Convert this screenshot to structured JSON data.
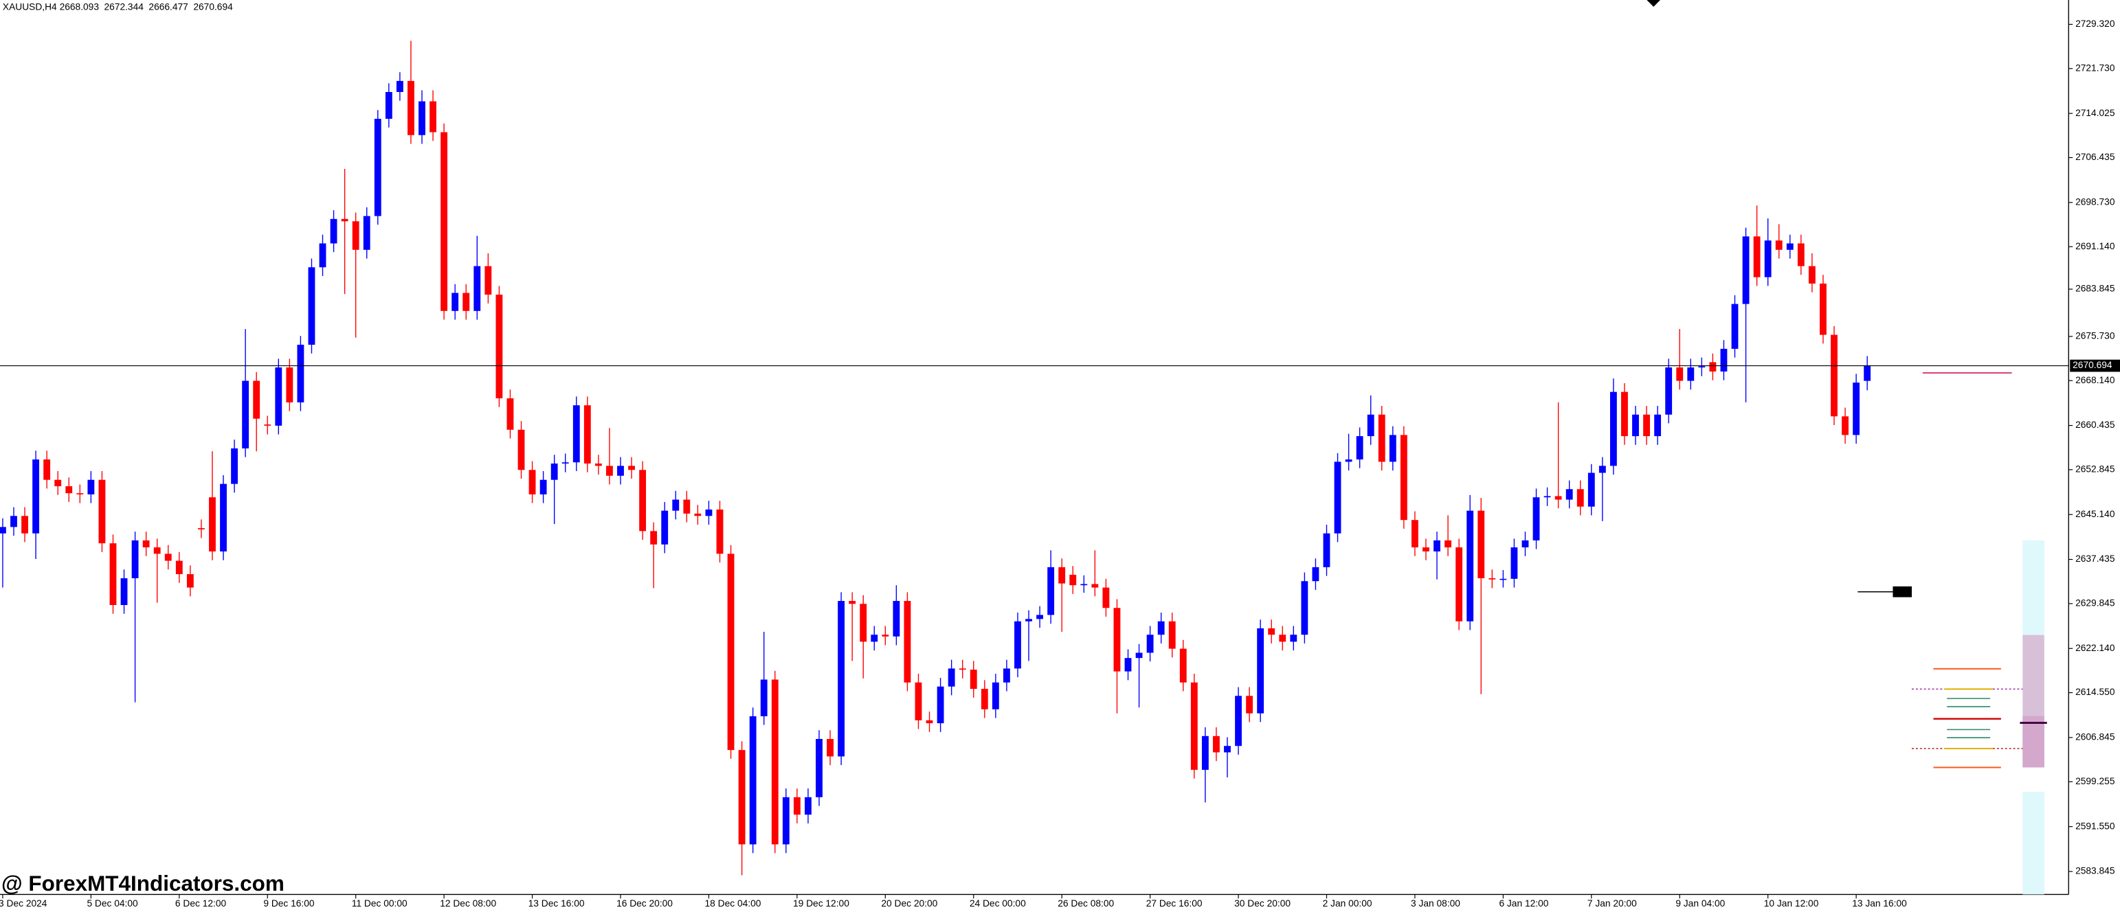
{
  "chart_data": {
    "type": "candlestick",
    "symbol": "XAUUSD,H4",
    "watermark": "@ ForexMT4Indicators.com",
    "up_color": "#0000ff",
    "down_color": "#ff0000",
    "ylim": [
      2579.9,
      2733.5
    ],
    "yticks": [
      {
        "value": 2729.32,
        "label": "2729.320"
      },
      {
        "value": 2721.73,
        "label": "2721.730"
      },
      2714.025,
      2706.435,
      {
        "value": 2698.73,
        "label": "2698.730"
      },
      {
        "value": 2691.14,
        "label": "2691.140"
      },
      2683.845,
      {
        "value": 2675.73,
        "label": "2675.730"
      },
      {
        "value": 2668.14,
        "label": "2668.140"
      },
      2660.435,
      2652.845,
      {
        "value": 2645.14,
        "label": "2645.140"
      },
      2637.435,
      2629.845,
      {
        "value": 2622.14,
        "label": "2622.140"
      },
      {
        "value": 2614.55,
        "label": "2614.550"
      },
      2606.845,
      2599.255,
      {
        "value": 2591.55,
        "label": "2591.550"
      },
      2583.845
    ],
    "categories": [
      "3 Dec 2024",
      null,
      null,
      null,
      null,
      null,
      null,
      null,
      "5 Dec 04:00",
      null,
      null,
      null,
      null,
      null,
      null,
      null,
      "6 Dec 12:00",
      null,
      null,
      null,
      null,
      null,
      null,
      null,
      "9 Dec 16:00",
      null,
      null,
      null,
      null,
      null,
      null,
      null,
      "11 Dec 00:00",
      null,
      null,
      null,
      null,
      null,
      null,
      null,
      "12 Dec 08:00",
      null,
      null,
      null,
      null,
      null,
      null,
      null,
      "13 Dec 16:00",
      null,
      null,
      null,
      null,
      null,
      null,
      null,
      "16 Dec 20:00",
      null,
      null,
      null,
      null,
      null,
      null,
      null,
      "18 Dec 04:00",
      null,
      null,
      null,
      null,
      null,
      null,
      null,
      "19 Dec 12:00",
      null,
      null,
      null,
      null,
      null,
      null,
      null,
      "20 Dec 20:00",
      null,
      null,
      null,
      null,
      null,
      null,
      null,
      "24 Dec 00:00",
      null,
      null,
      null,
      null,
      null,
      null,
      null,
      "26 Dec 08:00",
      null,
      null,
      null,
      null,
      null,
      null,
      null,
      "27 Dec 16:00",
      null,
      null,
      null,
      null,
      null,
      null,
      null,
      "30 Dec 20:00",
      null,
      null,
      null,
      null,
      null,
      null,
      null,
      "2 Jan 00:00",
      null,
      null,
      null,
      null,
      null,
      null,
      null,
      "3 Jan 08:00",
      null,
      null,
      null,
      null,
      null,
      null,
      null,
      "6 Jan 12:00",
      null,
      null,
      null,
      null,
      null,
      null,
      null,
      "7 Jan 20:00",
      null,
      null,
      null,
      null,
      null,
      null,
      null,
      "9 Jan 04:00",
      null,
      null,
      null,
      null,
      null,
      null,
      null,
      "10 Jan 12:00",
      null,
      null,
      null,
      null,
      null,
      null,
      null,
      "13 Jan 16:00",
      null
    ],
    "ohlc": [
      [
        2641.9,
        2644.5,
        2632.6,
        2643.0
      ],
      [
        2643.0,
        2646.4,
        2641.5,
        2644.9
      ],
      [
        2644.9,
        2646.4,
        2640.4,
        2641.9
      ],
      [
        2641.9,
        2656.1,
        2637.5,
        2654.6
      ],
      [
        2654.6,
        2656.1,
        2649.6,
        2651.1
      ],
      [
        2651.1,
        2652.6,
        2648.5,
        2650.0
      ],
      [
        2650.0,
        2651.5,
        2647.3,
        2648.8
      ],
      [
        2648.8,
        2650.3,
        2647.1,
        2648.6
      ],
      [
        2648.6,
        2652.6,
        2647.1,
        2651.1
      ],
      [
        2651.1,
        2652.6,
        2638.7,
        2640.2
      ],
      [
        2640.2,
        2641.7,
        2628.1,
        2629.6
      ],
      [
        2629.6,
        2635.7,
        2628.1,
        2634.2
      ],
      [
        2634.2,
        2642.2,
        2612.9,
        2640.7
      ],
      [
        2640.7,
        2642.2,
        2638.0,
        2639.5
      ],
      [
        2639.5,
        2641.0,
        2630.0,
        2638.4
      ],
      [
        2638.4,
        2639.9,
        2635.7,
        2637.2
      ],
      [
        2637.2,
        2638.7,
        2633.4,
        2634.9
      ],
      [
        2634.9,
        2636.4,
        2631.1,
        2632.6
      ],
      [
        2642.8,
        2644.3,
        2641.1,
        2642.6
      ],
      [
        2648.1,
        2656.0,
        2637.3,
        2638.8
      ],
      [
        2638.8,
        2651.9,
        2637.3,
        2650.4
      ],
      [
        2650.4,
        2658.0,
        2648.9,
        2656.5
      ],
      [
        2656.5,
        2677.0,
        2655.0,
        2668.1
      ],
      [
        2668.1,
        2669.6,
        2656.0,
        2661.6
      ],
      [
        2660.6,
        2662.1,
        2658.9,
        2660.4
      ],
      [
        2660.4,
        2671.9,
        2658.9,
        2670.4
      ],
      [
        2670.4,
        2671.9,
        2662.9,
        2664.4
      ],
      [
        2664.4,
        2675.8,
        2662.9,
        2674.3
      ],
      [
        2674.3,
        2689.1,
        2672.8,
        2687.6
      ],
      [
        2687.6,
        2693.2,
        2686.1,
        2691.7
      ],
      [
        2691.7,
        2697.4,
        2690.2,
        2695.9
      ],
      [
        2695.9,
        2704.5,
        2683.0,
        2695.5
      ],
      [
        2695.5,
        2697.0,
        2675.5,
        2690.6
      ],
      [
        2690.6,
        2697.9,
        2689.1,
        2696.4
      ],
      [
        2696.4,
        2714.6,
        2694.9,
        2713.1
      ],
      [
        2713.1,
        2719.2,
        2711.6,
        2717.7
      ],
      [
        2717.7,
        2721.1,
        2716.2,
        2719.6
      ],
      [
        2719.6,
        2726.5,
        2708.8,
        2710.3
      ],
      [
        2710.3,
        2718.0,
        2708.8,
        2716.1
      ],
      [
        2716.1,
        2718.0,
        2709.3,
        2710.8
      ],
      [
        2710.8,
        2712.3,
        2678.6,
        2680.1
      ],
      [
        2680.1,
        2684.7,
        2678.6,
        2683.2
      ],
      [
        2683.2,
        2684.7,
        2678.6,
        2680.1
      ],
      [
        2680.1,
        2693.0,
        2678.6,
        2687.8
      ],
      [
        2687.8,
        2690.0,
        2681.4,
        2682.9
      ],
      [
        2682.9,
        2684.4,
        2663.6,
        2665.1
      ],
      [
        2665.1,
        2666.6,
        2658.2,
        2659.7
      ],
      [
        2659.7,
        2661.2,
        2651.3,
        2652.8
      ],
      [
        2652.8,
        2654.3,
        2647.1,
        2648.6
      ],
      [
        2648.6,
        2652.6,
        2647.1,
        2651.1
      ],
      [
        2651.1,
        2655.4,
        2643.5,
        2653.9
      ],
      [
        2653.9,
        2655.6,
        2652.4,
        2654.1
      ],
      [
        2654.1,
        2665.4,
        2652.6,
        2663.9
      ],
      [
        2663.9,
        2665.4,
        2652.4,
        2653.9
      ],
      [
        2653.9,
        2655.4,
        2652.0,
        2653.5
      ],
      [
        2653.5,
        2660.0,
        2650.3,
        2651.8
      ],
      [
        2651.8,
        2655.0,
        2650.3,
        2653.5
      ],
      [
        2653.5,
        2655.0,
        2651.3,
        2652.8
      ],
      [
        2652.8,
        2654.3,
        2640.8,
        2642.3
      ],
      [
        2642.3,
        2643.8,
        2632.5,
        2640.0
      ],
      [
        2640.0,
        2647.3,
        2638.5,
        2645.8
      ],
      [
        2645.8,
        2649.2,
        2644.3,
        2647.7
      ],
      [
        2647.7,
        2649.2,
        2643.8,
        2645.3
      ],
      [
        2645.3,
        2646.8,
        2643.4,
        2644.9
      ],
      [
        2644.9,
        2647.5,
        2643.4,
        2646.0
      ],
      [
        2646.0,
        2647.5,
        2636.9,
        2638.4
      ],
      [
        2638.4,
        2639.9,
        2603.2,
        2604.7
      ],
      [
        2604.7,
        2606.2,
        2583.2,
        2588.5
      ],
      [
        2588.5,
        2612.0,
        2587.0,
        2610.5
      ],
      [
        2610.5,
        2625.0,
        2609.0,
        2616.8
      ],
      [
        2616.8,
        2618.3,
        2587.0,
        2588.5
      ],
      [
        2588.5,
        2598.1,
        2587.0,
        2596.6
      ],
      [
        2596.6,
        2598.1,
        2592.1,
        2593.6
      ],
      [
        2593.6,
        2598.1,
        2592.1,
        2596.6
      ],
      [
        2596.6,
        2608.1,
        2595.1,
        2606.6
      ],
      [
        2606.6,
        2608.1,
        2602.1,
        2603.6
      ],
      [
        2603.6,
        2631.8,
        2602.1,
        2630.3
      ],
      [
        2630.3,
        2631.8,
        2620.0,
        2629.8
      ],
      [
        2629.8,
        2631.3,
        2617.0,
        2623.3
      ],
      [
        2623.3,
        2626.0,
        2621.8,
        2624.5
      ],
      [
        2624.5,
        2626.0,
        2622.7,
        2624.2
      ],
      [
        2624.2,
        2633.0,
        2622.7,
        2630.3
      ],
      [
        2630.3,
        2631.8,
        2614.8,
        2616.3
      ],
      [
        2616.3,
        2617.8,
        2608.3,
        2609.8
      ],
      [
        2609.8,
        2611.3,
        2607.8,
        2609.3
      ],
      [
        2609.3,
        2617.1,
        2607.8,
        2615.6
      ],
      [
        2615.6,
        2620.2,
        2614.1,
        2618.7
      ],
      [
        2618.7,
        2620.2,
        2617.0,
        2618.5
      ],
      [
        2618.5,
        2620.0,
        2613.7,
        2615.2
      ],
      [
        2615.2,
        2616.7,
        2610.2,
        2611.7
      ],
      [
        2611.7,
        2617.8,
        2610.2,
        2616.3
      ],
      [
        2616.3,
        2620.2,
        2614.8,
        2618.7
      ],
      [
        2618.7,
        2628.3,
        2617.2,
        2626.8
      ],
      [
        2626.8,
        2628.7,
        2620.0,
        2627.2
      ],
      [
        2627.2,
        2629.4,
        2625.7,
        2627.9
      ],
      [
        2627.9,
        2639.0,
        2626.4,
        2636.1
      ],
      [
        2636.1,
        2637.6,
        2625.0,
        2633.3
      ],
      [
        2634.8,
        2636.3,
        2631.5,
        2633.0
      ],
      [
        2633.0,
        2634.7,
        2631.7,
        2633.2
      ],
      [
        2633.2,
        2639.0,
        2631.1,
        2632.6
      ],
      [
        2632.6,
        2634.1,
        2627.6,
        2629.1
      ],
      [
        2629.1,
        2630.6,
        2611.0,
        2618.2
      ],
      [
        2618.2,
        2622.0,
        2616.7,
        2620.5
      ],
      [
        2620.5,
        2622.9,
        2612.0,
        2621.4
      ],
      [
        2621.4,
        2626.0,
        2619.9,
        2624.5
      ],
      [
        2624.5,
        2628.3,
        2623.0,
        2626.8
      ],
      [
        2626.8,
        2628.3,
        2620.6,
        2622.1
      ],
      [
        2622.1,
        2623.6,
        2614.8,
        2616.3
      ],
      [
        2616.3,
        2617.8,
        2599.8,
        2601.3
      ],
      [
        2601.3,
        2608.6,
        2595.7,
        2607.1
      ],
      [
        2607.1,
        2608.6,
        2602.8,
        2604.3
      ],
      [
        2604.3,
        2606.9,
        2600.0,
        2605.4
      ],
      [
        2605.4,
        2615.5,
        2603.9,
        2614.0
      ],
      [
        2614.0,
        2615.5,
        2609.5,
        2611.0
      ],
      [
        2611.0,
        2627.1,
        2609.5,
        2625.6
      ],
      [
        2625.6,
        2627.1,
        2623.0,
        2624.5
      ],
      [
        2624.5,
        2626.0,
        2621.8,
        2623.3
      ],
      [
        2623.3,
        2626.0,
        2621.8,
        2624.5
      ],
      [
        2624.5,
        2635.2,
        2623.0,
        2633.7
      ],
      [
        2633.7,
        2637.6,
        2632.2,
        2636.1
      ],
      [
        2636.1,
        2643.4,
        2634.6,
        2641.9
      ],
      [
        2641.9,
        2655.7,
        2640.4,
        2654.2
      ],
      [
        2654.2,
        2659.0,
        2652.7,
        2654.6
      ],
      [
        2654.6,
        2660.1,
        2653.1,
        2658.6
      ],
      [
        2658.6,
        2665.6,
        2657.1,
        2662.3
      ],
      [
        2662.3,
        2663.8,
        2652.7,
        2654.2
      ],
      [
        2654.2,
        2660.3,
        2652.7,
        2658.8
      ],
      [
        2658.8,
        2660.3,
        2642.7,
        2644.2
      ],
      [
        2644.2,
        2645.7,
        2638.0,
        2639.5
      ],
      [
        2639.5,
        2641.0,
        2637.3,
        2638.8
      ],
      [
        2638.8,
        2642.2,
        2634.0,
        2640.7
      ],
      [
        2640.7,
        2645.0,
        2638.0,
        2639.5
      ],
      [
        2639.5,
        2641.0,
        2625.3,
        2626.8
      ],
      [
        2626.8,
        2648.5,
        2625.3,
        2645.8
      ],
      [
        2645.8,
        2648.0,
        2614.3,
        2634.2
      ],
      [
        2634.2,
        2635.7,
        2632.5,
        2634.0
      ],
      [
        2634.0,
        2635.6,
        2632.6,
        2634.1
      ],
      [
        2634.1,
        2641.0,
        2632.6,
        2639.5
      ],
      [
        2639.5,
        2642.2,
        2638.0,
        2640.7
      ],
      [
        2640.7,
        2649.6,
        2639.2,
        2648.1
      ],
      [
        2648.1,
        2649.8,
        2646.6,
        2648.3
      ],
      [
        2648.3,
        2664.4,
        2646.2,
        2647.7
      ],
      [
        2647.7,
        2651.0,
        2646.2,
        2649.5
      ],
      [
        2649.5,
        2651.0,
        2645.0,
        2646.5
      ],
      [
        2646.5,
        2653.8,
        2645.0,
        2652.3
      ],
      [
        2652.3,
        2655.0,
        2644.0,
        2653.5
      ],
      [
        2653.5,
        2668.5,
        2652.0,
        2666.2
      ],
      [
        2666.2,
        2667.7,
        2657.1,
        2658.6
      ],
      [
        2658.6,
        2663.8,
        2657.1,
        2662.3
      ],
      [
        2662.3,
        2663.8,
        2657.1,
        2658.6
      ],
      [
        2658.6,
        2663.8,
        2657.1,
        2662.3
      ],
      [
        2662.3,
        2671.9,
        2660.8,
        2670.4
      ],
      [
        2670.4,
        2677.0,
        2666.6,
        2668.1
      ],
      [
        2668.1,
        2671.9,
        2666.6,
        2670.4
      ],
      [
        2670.4,
        2672.1,
        2668.9,
        2670.6
      ],
      [
        2671.3,
        2672.8,
        2668.2,
        2669.7
      ],
      [
        2669.7,
        2675.1,
        2668.2,
        2673.6
      ],
      [
        2673.6,
        2682.8,
        2672.1,
        2681.3
      ],
      [
        2681.3,
        2694.4,
        2664.4,
        2692.9
      ],
      [
        2692.9,
        2698.2,
        2684.4,
        2685.9
      ],
      [
        2685.9,
        2696.0,
        2684.4,
        2692.2
      ],
      [
        2692.2,
        2695.0,
        2689.1,
        2690.6
      ],
      [
        2690.6,
        2693.2,
        2689.1,
        2691.7
      ],
      [
        2691.7,
        2693.2,
        2686.3,
        2687.8
      ],
      [
        2687.8,
        2690.0,
        2683.3,
        2684.8
      ],
      [
        2684.8,
        2686.3,
        2674.5,
        2676.0
      ],
      [
        2676.0,
        2677.5,
        2660.5,
        2662.0
      ],
      [
        2662.0,
        2663.5,
        2657.3,
        2658.8
      ],
      [
        2658.8,
        2669.3,
        2657.3,
        2667.8
      ],
      [
        2668.093,
        2672.344,
        2666.477,
        2670.694
      ]
    ]
  }
}
